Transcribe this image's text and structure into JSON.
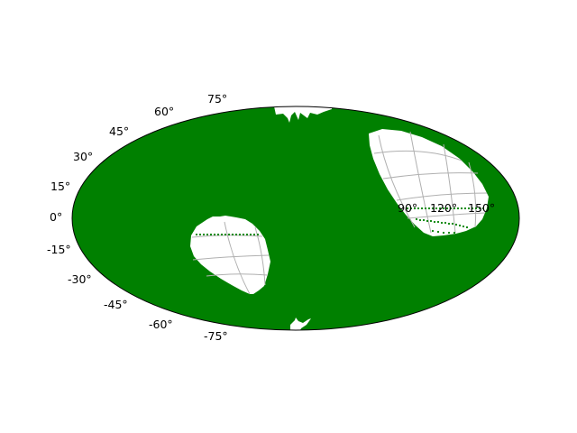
{
  "map": {
    "projection": "aitoff",
    "fill_color": "#008000",
    "gap_color": "#ffffff",
    "grid_color": "#b0b0b0",
    "edge_color": "#000000",
    "lat_labels": [
      "75°",
      "60°",
      "45°",
      "30°",
      "15°",
      "0°",
      "-15°",
      "-30°",
      "-45°",
      "-60°",
      "-75°"
    ],
    "lon_labels": [
      "90°",
      "120°",
      "150°"
    ]
  }
}
